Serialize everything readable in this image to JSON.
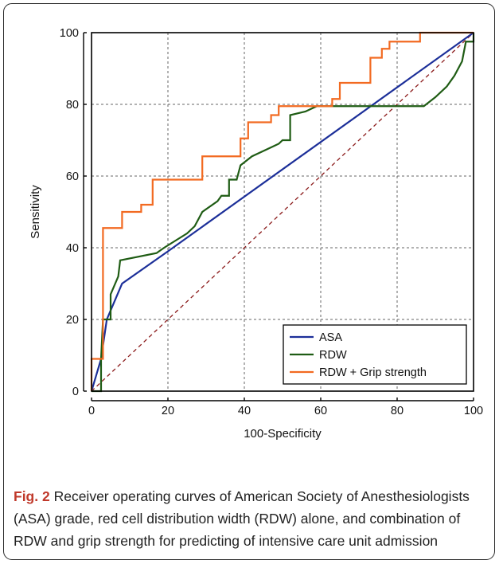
{
  "caption": {
    "fig_label": "Fig. 2",
    "text": "Receiver operating curves of American Society of Anesthesiologists (ASA) grade, red cell distribution width (RDW) alone, and combination of RDW and grip strength for predicting of intensive care unit admission"
  },
  "chart_data": {
    "type": "line",
    "title": "",
    "xlabel": "100-Specificity",
    "ylabel": "Sensitivity",
    "xlim": [
      0,
      100
    ],
    "ylim": [
      0,
      100
    ],
    "xticks": [
      "0",
      "20",
      "40",
      "60",
      "80",
      "100"
    ],
    "yticks": [
      "0",
      "20",
      "40",
      "60",
      "80",
      "100"
    ],
    "grid": true,
    "legend_position": "bottom-right",
    "reference_line": {
      "color": "#8b1a1a",
      "style": "dashed",
      "points": [
        [
          0,
          0
        ],
        [
          100,
          100
        ]
      ]
    },
    "series": [
      {
        "name": "ASA",
        "color": "#1c2f99",
        "points": [
          [
            0,
            0
          ],
          [
            2.5,
            9
          ],
          [
            4,
            20
          ],
          [
            8,
            30
          ],
          [
            20,
            39
          ],
          [
            100,
            100
          ]
        ]
      },
      {
        "name": "RDW",
        "color": "#1f5c14",
        "points": [
          [
            0,
            0
          ],
          [
            2.5,
            0
          ],
          [
            2.5,
            9
          ],
          [
            3,
            20
          ],
          [
            5,
            20
          ],
          [
            5,
            27
          ],
          [
            7,
            32
          ],
          [
            7.5,
            36.5
          ],
          [
            17,
            38.5
          ],
          [
            19,
            40
          ],
          [
            22,
            42
          ],
          [
            25,
            44
          ],
          [
            27,
            46
          ],
          [
            29,
            50
          ],
          [
            33,
            53
          ],
          [
            34,
            54.5
          ],
          [
            36,
            54.5
          ],
          [
            36,
            59
          ],
          [
            38,
            59
          ],
          [
            39,
            63
          ],
          [
            42,
            65.5
          ],
          [
            45,
            67
          ],
          [
            47,
            68
          ],
          [
            49,
            69
          ],
          [
            50,
            70
          ],
          [
            52,
            70
          ],
          [
            52,
            77
          ],
          [
            56,
            78
          ],
          [
            59,
            79.5
          ],
          [
            87,
            79.5
          ],
          [
            90,
            82
          ],
          [
            93,
            85
          ],
          [
            95,
            88
          ],
          [
            97,
            92
          ],
          [
            98,
            97.5
          ],
          [
            100,
            97.5
          ],
          [
            100,
            100
          ]
        ]
      },
      {
        "name": "RDW + Grip strength",
        "color": "#f26a21",
        "points": [
          [
            0,
            0
          ],
          [
            0,
            9
          ],
          [
            3,
            9
          ],
          [
            3,
            45.5
          ],
          [
            8,
            45.5
          ],
          [
            8,
            50
          ],
          [
            13,
            50
          ],
          [
            13,
            52
          ],
          [
            16,
            52
          ],
          [
            16,
            59
          ],
          [
            29,
            59
          ],
          [
            29,
            65.5
          ],
          [
            39,
            65.5
          ],
          [
            39,
            70.5
          ],
          [
            41,
            70.5
          ],
          [
            41,
            75
          ],
          [
            47,
            75
          ],
          [
            47,
            77
          ],
          [
            49,
            77
          ],
          [
            49,
            79.5
          ],
          [
            63,
            79.5
          ],
          [
            63,
            81.5
          ],
          [
            65,
            81.5
          ],
          [
            65,
            86
          ],
          [
            73,
            86
          ],
          [
            73,
            93
          ],
          [
            76,
            93
          ],
          [
            76,
            95.5
          ],
          [
            78,
            95.5
          ],
          [
            78,
            97.5
          ],
          [
            86,
            97.5
          ],
          [
            86,
            100
          ],
          [
            100,
            100
          ]
        ]
      }
    ]
  }
}
